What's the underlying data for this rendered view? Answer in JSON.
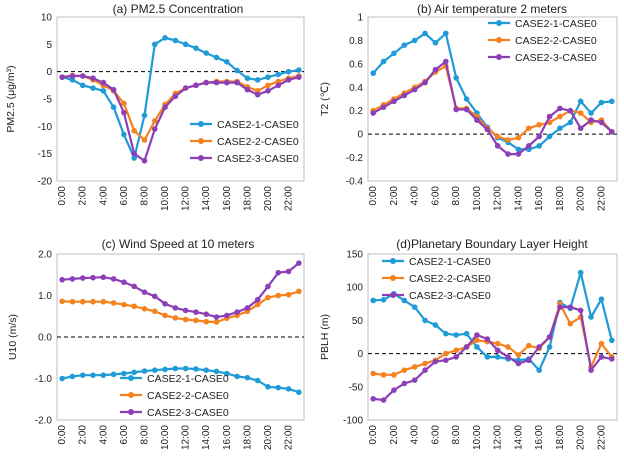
{
  "chart_data": [
    {
      "type": "line",
      "title": "(a) PM2.5 Concentration",
      "ylabel": "PM2.5 (μg/m³)",
      "xlabel": "",
      "ylim": [
        -20,
        10
      ],
      "yticks": [
        10,
        5,
        0,
        -5,
        -10,
        -15,
        -20
      ],
      "categories": [
        "0:00",
        "1:00",
        "2:00",
        "3:00",
        "4:00",
        "5:00",
        "6:00",
        "7:00",
        "8:00",
        "9:00",
        "10:00",
        "11:00",
        "12:00",
        "13:00",
        "14:00",
        "15:00",
        "16:00",
        "17:00",
        "18:00",
        "19:00",
        "20:00",
        "21:00",
        "22:00",
        "23:00"
      ],
      "tick_labels": [
        "0:00",
        "2:00",
        "4:00",
        "6:00",
        "8:00",
        "10:00",
        "12:00",
        "14:00",
        "16:00",
        "18:00",
        "20:00",
        "22:00"
      ],
      "legend_position": "lower-right",
      "zero_line": true,
      "series": [
        {
          "name": "CASE2-1-CASE0",
          "color": "#1f9bd6",
          "values": [
            -1.0,
            -1.5,
            -2.5,
            -3.0,
            -3.5,
            -6.5,
            -11.5,
            -15.8,
            -8.0,
            5.0,
            6.2,
            5.7,
            5.0,
            4.3,
            3.4,
            2.6,
            1.8,
            0.2,
            -1.2,
            -1.5,
            -1.0,
            -0.5,
            0.0,
            0.3
          ]
        },
        {
          "name": "CASE2-2-CASE0",
          "color": "#f5821f",
          "values": [
            -1.0,
            -0.7,
            -0.8,
            -1.5,
            -2.5,
            -3.5,
            -5.8,
            -10.8,
            -12.5,
            -9.0,
            -6.0,
            -4.0,
            -3.0,
            -2.5,
            -2.0,
            -1.8,
            -1.8,
            -1.8,
            -2.8,
            -3.5,
            -2.5,
            -1.8,
            -1.2,
            -0.8
          ]
        },
        {
          "name": "CASE2-3-CASE0",
          "color": "#8c3fb6",
          "values": [
            -1.0,
            -0.8,
            -0.8,
            -1.2,
            -2.0,
            -3.3,
            -7.5,
            -15.0,
            -16.3,
            -10.5,
            -6.5,
            -4.5,
            -3.0,
            -2.5,
            -2.0,
            -2.0,
            -2.0,
            -2.0,
            -3.3,
            -4.2,
            -3.5,
            -2.5,
            -1.5,
            -1.0
          ]
        }
      ]
    },
    {
      "type": "line",
      "title": "(b) Air temperature 2 meters",
      "ylabel": "T2 (℃)",
      "xlabel": "",
      "ylim": [
        -0.4,
        1.0
      ],
      "yticks": [
        "1",
        "0.8",
        "0.6",
        "0.4",
        "0.2",
        "0",
        "-0.2",
        "-0.4"
      ],
      "categories": [
        "0:00",
        "1:00",
        "2:00",
        "3:00",
        "4:00",
        "5:00",
        "6:00",
        "7:00",
        "8:00",
        "9:00",
        "10:00",
        "11:00",
        "12:00",
        "13:00",
        "14:00",
        "15:00",
        "16:00",
        "17:00",
        "18:00",
        "19:00",
        "20:00",
        "21:00",
        "22:00",
        "23:00"
      ],
      "tick_labels": [
        "0:00",
        "2:00",
        "4:00",
        "6:00",
        "8:00",
        "10:00",
        "12:00",
        "14:00",
        "16:00",
        "18:00",
        "20:00",
        "22:00"
      ],
      "legend_position": "top-right",
      "zero_line": true,
      "series": [
        {
          "name": "CASE2-1-CASE0",
          "color": "#1f9bd6",
          "values": [
            0.52,
            0.62,
            0.69,
            0.76,
            0.8,
            0.86,
            0.78,
            0.86,
            0.48,
            0.3,
            0.18,
            0.06,
            -0.03,
            -0.07,
            -0.13,
            -0.13,
            -0.1,
            -0.02,
            0.05,
            0.1,
            0.28,
            0.18,
            0.27,
            0.28
          ]
        },
        {
          "name": "CASE2-2-CASE0",
          "color": "#f5821f",
          "values": [
            0.2,
            0.25,
            0.3,
            0.35,
            0.4,
            0.45,
            0.53,
            0.58,
            0.22,
            0.22,
            0.15,
            0.05,
            -0.02,
            -0.05,
            -0.03,
            0.05,
            0.08,
            0.1,
            0.15,
            0.2,
            0.18,
            0.1,
            0.12,
            0.02
          ]
        },
        {
          "name": "CASE2-3-CASE0",
          "color": "#8c3fb6",
          "values": [
            0.18,
            0.23,
            0.28,
            0.33,
            0.38,
            0.44,
            0.55,
            0.62,
            0.21,
            0.21,
            0.12,
            0.04,
            -0.1,
            -0.17,
            -0.17,
            -0.1,
            -0.02,
            0.15,
            0.22,
            0.2,
            0.05,
            0.12,
            0.1,
            0.02
          ]
        }
      ]
    },
    {
      "type": "line",
      "title": "(c) Wind Speed at 10 meters",
      "ylabel": "U10 (m/s)",
      "xlabel": "",
      "ylim": [
        -2.0,
        2.0
      ],
      "yticks": [
        "2.0",
        "1.0",
        "0.0",
        "-1.0",
        "-2.0"
      ],
      "categories": [
        "0:00",
        "1:00",
        "2:00",
        "3:00",
        "4:00",
        "5:00",
        "6:00",
        "7:00",
        "8:00",
        "9:00",
        "10:00",
        "11:00",
        "12:00",
        "13:00",
        "14:00",
        "15:00",
        "16:00",
        "17:00",
        "18:00",
        "19:00",
        "20:00",
        "21:00",
        "22:00",
        "23:00"
      ],
      "tick_labels": [
        "0:00",
        "2:00",
        "4:00",
        "6:00",
        "8:00",
        "10:00",
        "12:00",
        "14:00",
        "16:00",
        "18:00",
        "20:00",
        "22:00"
      ],
      "legend_position": "lower-left",
      "zero_line": true,
      "series": [
        {
          "name": "CASE2-1-CASE0",
          "color": "#1f9bd6",
          "values": [
            -1.0,
            -0.95,
            -0.92,
            -0.92,
            -0.92,
            -0.9,
            -0.88,
            -0.85,
            -0.82,
            -0.8,
            -0.78,
            -0.76,
            -0.76,
            -0.77,
            -0.8,
            -0.83,
            -0.88,
            -0.95,
            -0.98,
            -1.05,
            -1.2,
            -1.22,
            -1.25,
            -1.33
          ]
        },
        {
          "name": "CASE2-2-CASE0",
          "color": "#f5821f",
          "values": [
            0.86,
            0.85,
            0.85,
            0.85,
            0.85,
            0.82,
            0.78,
            0.74,
            0.68,
            0.62,
            0.52,
            0.46,
            0.42,
            0.4,
            0.37,
            0.36,
            0.45,
            0.52,
            0.62,
            0.78,
            0.95,
            1.0,
            1.02,
            1.1
          ]
        },
        {
          "name": "CASE2-3-CASE0",
          "color": "#8c3fb6",
          "values": [
            1.38,
            1.4,
            1.42,
            1.43,
            1.44,
            1.4,
            1.32,
            1.22,
            1.08,
            0.98,
            0.8,
            0.7,
            0.64,
            0.6,
            0.55,
            0.48,
            0.52,
            0.6,
            0.7,
            0.9,
            1.22,
            1.55,
            1.58,
            1.78
          ]
        }
      ]
    },
    {
      "type": "line",
      "title": "(d)Planetary Boundary Layer Height",
      "ylabel": "PBLH (m)",
      "xlabel": "",
      "ylim": [
        -100,
        150
      ],
      "yticks": [
        150,
        100,
        50,
        0,
        -50,
        -100
      ],
      "categories": [
        "0:00",
        "1:00",
        "2:00",
        "3:00",
        "4:00",
        "5:00",
        "6:00",
        "7:00",
        "8:00",
        "9:00",
        "10:00",
        "11:00",
        "12:00",
        "13:00",
        "14:00",
        "15:00",
        "16:00",
        "17:00",
        "18:00",
        "19:00",
        "20:00",
        "21:00",
        "22:00",
        "23:00"
      ],
      "tick_labels": [
        "0:00",
        "2:00",
        "4:00",
        "6:00",
        "8:00",
        "10:00",
        "12:00",
        "14:00",
        "16:00",
        "18:00",
        "20:00",
        "22:00"
      ],
      "legend_position": "top-left",
      "zero_line": true,
      "series": [
        {
          "name": "CASE2-1-CASE0",
          "color": "#1f9bd6",
          "values": [
            80,
            81,
            90,
            80,
            70,
            50,
            43,
            30,
            28,
            30,
            10,
            -5,
            -5,
            -8,
            -10,
            -8,
            -25,
            10,
            77,
            68,
            122,
            55,
            82,
            20
          ]
        },
        {
          "name": "CASE2-2-CASE0",
          "color": "#f5821f",
          "values": [
            -30,
            -32,
            -32,
            -25,
            -20,
            -15,
            -10,
            0,
            5,
            10,
            20,
            18,
            15,
            10,
            -2,
            12,
            8,
            25,
            75,
            45,
            55,
            -20,
            15,
            -5
          ]
        },
        {
          "name": "CASE2-3-CASE0",
          "color": "#8c3fb6",
          "values": [
            -68,
            -70,
            -55,
            -45,
            -40,
            -25,
            -12,
            -10,
            -5,
            10,
            28,
            22,
            5,
            -5,
            -15,
            -10,
            10,
            25,
            70,
            70,
            65,
            -25,
            -5,
            -8
          ]
        }
      ]
    }
  ]
}
